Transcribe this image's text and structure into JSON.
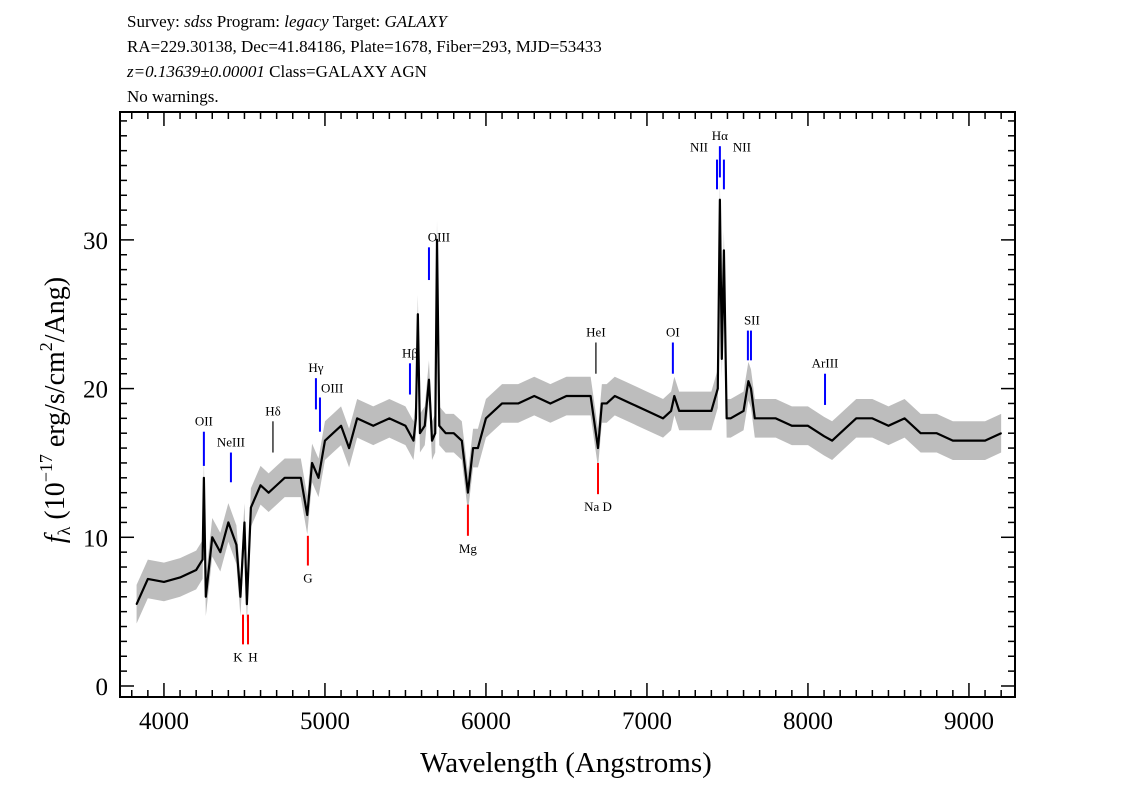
{
  "header": {
    "line1": {
      "survey_label": "Survey:",
      "survey": "sdss",
      "program_label": "Program:",
      "program": "legacy",
      "target_label": "Target:",
      "target": "GALAXY"
    },
    "line2": "RA=229.30138, Dec=41.84186, Plate=1678, Fiber=293, MJD=53433",
    "line3": {
      "redshift": "z=0.13639±0.00001",
      "class": "Class=GALAXY AGN"
    },
    "line4": "No warnings."
  },
  "chart_data": {
    "type": "line",
    "xlabel": "Wavelength (Angstroms)",
    "ylabel": "f_λ (10^-17 erg/s/cm^2/Ang)",
    "ylabel_parts": {
      "f": "f",
      "sub": "λ",
      "pre": " (10",
      "exp": "−17",
      "mid": " erg/s/cm",
      "exp2": "2",
      "post": "/Ang)"
    },
    "xlim": [
      3727,
      9286
    ],
    "ylim": [
      -0.74,
      38.6
    ],
    "xticks": [
      4000,
      5000,
      6000,
      7000,
      8000,
      9000
    ],
    "yticks": [
      0,
      10,
      20,
      30
    ],
    "x_minor_step": 100,
    "y_minor_step": 1,
    "grid": false,
    "colors": {
      "flux": "#000000",
      "error": "#bdbdbd",
      "emission": "#0000ff",
      "absorption": "#ff0000",
      "sky": "#000000"
    },
    "series": [
      {
        "x": [
          3830,
          3900,
          4000,
          4100,
          4200,
          4240,
          4248,
          4260,
          4300,
          4350,
          4400,
          4450,
          4475,
          4500,
          4515,
          4540,
          4600,
          4650,
          4700,
          4750,
          4800,
          4850,
          4890,
          4920,
          4960,
          5000,
          5050,
          5100,
          5150,
          5200,
          5300,
          5400,
          5500,
          5550,
          5565,
          5577,
          5590,
          5620,
          5646,
          5665,
          5685,
          5696,
          5710,
          5750,
          5800,
          5850,
          5888,
          5920,
          5950,
          6000,
          6100,
          6200,
          6300,
          6400,
          6500,
          6600,
          6650,
          6696,
          6720,
          6750,
          6800,
          6900,
          7000,
          7100,
          7150,
          7170,
          7200,
          7300,
          7400,
          7440,
          7453,
          7465,
          7478,
          7495,
          7520,
          7600,
          7630,
          7646,
          7670,
          7700,
          7800,
          7900,
          8000,
          8100,
          8150,
          8200,
          8300,
          8400,
          8500,
          8600,
          8700,
          8800,
          8900,
          9000,
          9100,
          9200
        ],
        "y": [
          5.5,
          7.2,
          7.0,
          7.3,
          7.8,
          8.5,
          14.0,
          6.0,
          10.0,
          9.0,
          11.0,
          9.5,
          6.0,
          11.0,
          5.5,
          12.0,
          13.5,
          13.0,
          13.5,
          14.0,
          14.0,
          14.0,
          11.5,
          15.0,
          14.0,
          16.5,
          17.0,
          17.5,
          16.0,
          18.0,
          17.5,
          18.0,
          17.5,
          16.5,
          18.0,
          25.0,
          17.0,
          17.5,
          20.6,
          16.5,
          17.0,
          30.0,
          17.5,
          17.0,
          17.0,
          16.5,
          13.0,
          16.0,
          16.0,
          18.0,
          19.0,
          19.0,
          19.5,
          19.0,
          19.5,
          19.5,
          19.5,
          16.0,
          19.0,
          19.0,
          19.5,
          19.0,
          18.5,
          18.0,
          18.5,
          19.5,
          18.5,
          18.5,
          18.5,
          20.0,
          32.7,
          22.0,
          29.3,
          18.0,
          18.0,
          18.5,
          20.5,
          20.0,
          18.0,
          18.0,
          18.0,
          17.5,
          17.5,
          16.8,
          16.5,
          17.0,
          18.0,
          18.0,
          17.5,
          18.0,
          17.0,
          17.0,
          16.5,
          16.5,
          16.5,
          17.0
        ]
      }
    ],
    "lines": [
      {
        "name": "OII",
        "wavelength": 4248,
        "flux_range": [
          14.8,
          17.1
        ],
        "kind": "emission"
      },
      {
        "name": "NeIII",
        "wavelength": 4416,
        "flux_range": [
          13.7,
          15.7
        ],
        "kind": "emission"
      },
      {
        "name": "Hδ",
        "wavelength": 4677,
        "flux_range": [
          15.7,
          17.8
        ],
        "kind": "sky"
      },
      {
        "name": "Hγ",
        "wavelength": 4944,
        "flux_range": [
          18.6,
          20.7
        ],
        "kind": "emission"
      },
      {
        "name": "OIII",
        "wavelength": 4969,
        "flux_range": [
          17.1,
          19.4
        ],
        "kind": "emission"
      },
      {
        "name": "Hβ",
        "wavelength": 5528,
        "flux_range": [
          19.6,
          21.7
        ],
        "kind": "emission"
      },
      {
        "name": "OIII",
        "wavelength": 5646,
        "flux_range": [
          27.3,
          29.5
        ],
        "kind": "emission"
      },
      {
        "name": "",
        "wavelength": 5696,
        "flux_range": [
          27.3,
          29.5
        ],
        "kind": "sky"
      },
      {
        "name": "HeI",
        "wavelength": 6683,
        "flux_range": [
          21.0,
          23.1
        ],
        "kind": "sky"
      },
      {
        "name": "OI",
        "wavelength": 7161,
        "flux_range": [
          21.0,
          23.1
        ],
        "kind": "emission"
      },
      {
        "name": "NII",
        "wavelength": 7435,
        "flux_range": [
          33.4,
          35.4
        ],
        "kind": "emission"
      },
      {
        "name": "Hα",
        "wavelength": 7453,
        "flux_range": [
          34.2,
          36.3
        ],
        "kind": "emission"
      },
      {
        "name": "NII",
        "wavelength": 7478,
        "flux_range": [
          33.4,
          35.4
        ],
        "kind": "emission"
      },
      {
        "name": "SII",
        "wavelength": 7627,
        "flux_range": [
          21.9,
          23.9
        ],
        "kind": "emission"
      },
      {
        "name": "",
        "wavelength": 7646,
        "flux_range": [
          21.9,
          23.9
        ],
        "kind": "emission"
      },
      {
        "name": "ArIII",
        "wavelength": 8106,
        "flux_range": [
          18.9,
          21.0
        ],
        "kind": "emission"
      },
      {
        "name": "K",
        "wavelength": 4491,
        "flux_range": [
          2.8,
          4.8
        ],
        "kind": "absorption"
      },
      {
        "name": "H",
        "wavelength": 4522,
        "flux_range": [
          2.8,
          4.8
        ],
        "kind": "absorption"
      },
      {
        "name": "G",
        "wavelength": 4894,
        "flux_range": [
          8.1,
          10.1
        ],
        "kind": "absorption"
      },
      {
        "name": "Mg",
        "wavelength": 5888,
        "flux_range": [
          10.1,
          12.2
        ],
        "kind": "absorption"
      },
      {
        "name": "Na D",
        "wavelength": 6696,
        "flux_range": [
          12.9,
          15.0
        ],
        "kind": "absorption"
      }
    ]
  }
}
